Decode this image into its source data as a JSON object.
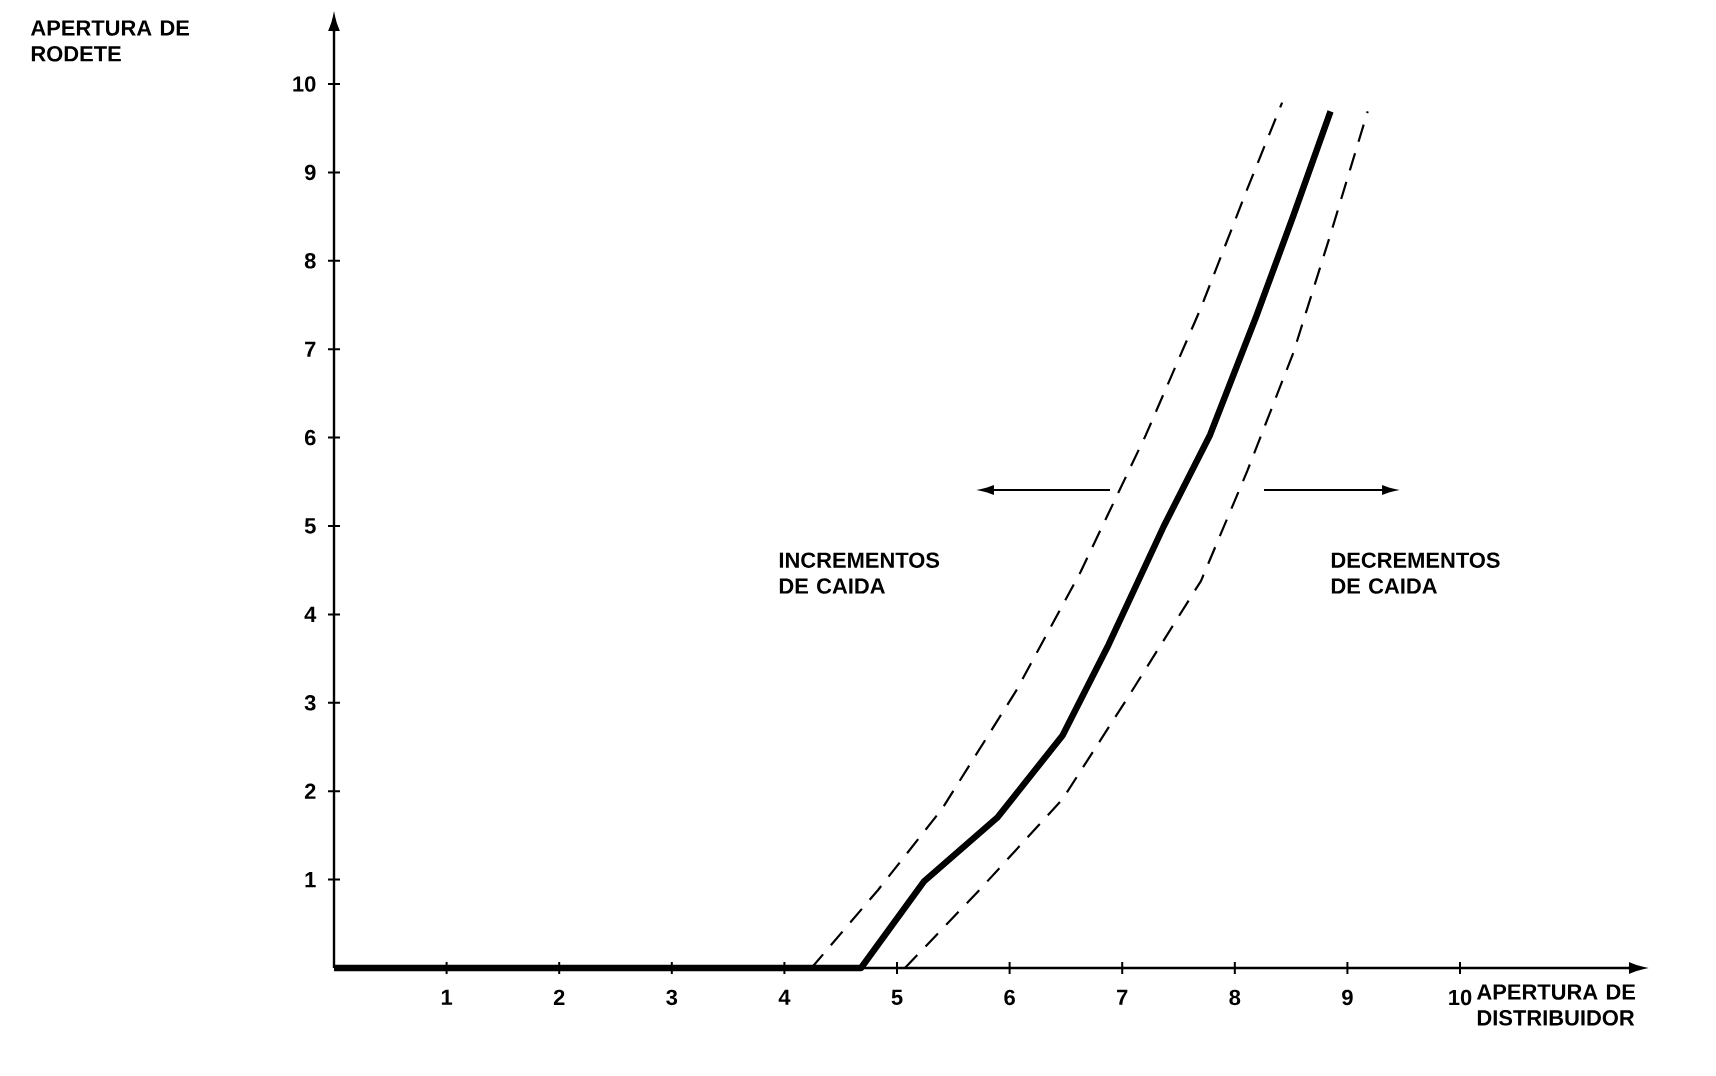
{
  "chart_data": {
    "type": "line",
    "xlabel": "APERTURA DE DISTRIBUIDOR",
    "ylabel": "APERTURA DE RODETE",
    "xlim": [
      0,
      11.5
    ],
    "ylim": [
      0,
      10.6
    ],
    "xticks": [
      1,
      2,
      3,
      4,
      5,
      6,
      7,
      8,
      9,
      10
    ],
    "yticks": [
      1,
      2,
      3,
      4,
      5,
      6,
      7,
      8,
      9,
      10
    ],
    "grid": false,
    "marker": "none",
    "annotations": [
      "INCREMENTOS DE CAIDA",
      "DECREMENTOS DE CAIDA"
    ],
    "series": [
      {
        "color": "#000000",
        "line_style": "solid",
        "x": [
          0,
          4.68,
          5.24,
          5.89,
          6.47,
          6.88,
          7.37,
          7.78,
          8.19,
          8.52,
          8.85
        ],
        "values": [
          0,
          0,
          0.98,
          1.7,
          2.63,
          3.66,
          5.0,
          6.03,
          7.37,
          8.51,
          9.69
        ]
      },
      {
        "color": "#000000",
        "line_style": "dashed",
        "x": [
          4.24,
          4.83,
          5.4,
          6.06,
          6.63,
          7.21,
          7.7,
          8.11,
          8.42
        ],
        "values": [
          0,
          0.88,
          1.8,
          3.14,
          4.48,
          6.03,
          7.47,
          8.81,
          9.79
        ]
      },
      {
        "color": "#000000",
        "line_style": "dashed",
        "x": [
          5.07,
          5.73,
          6.47,
          7.04,
          7.7,
          8.11,
          8.52,
          8.85,
          9.18
        ],
        "values": [
          0,
          0.88,
          1.91,
          3.04,
          4.38,
          5.62,
          6.96,
          8.3,
          9.69
        ]
      }
    ]
  }
}
